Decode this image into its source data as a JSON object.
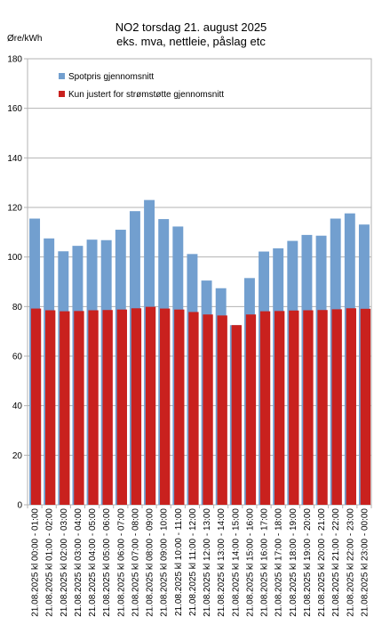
{
  "chart_data": {
    "type": "bar",
    "title": "NO2 torsdag 21. august 2025",
    "subtitle": "eks. mva, nettleie, påslag etc",
    "ylabel": "Øre/kWh",
    "xlabel": "",
    "ylim": [
      0,
      180
    ],
    "yticks": [
      0,
      20,
      40,
      60,
      80,
      100,
      120,
      140,
      160,
      180
    ],
    "grid": true,
    "legend": "top-left",
    "categories": [
      "21.08.2025 kl 00:00 - 01:00",
      "21.08.2025 kl 01:00 - 02:00",
      "21.08.2025 kl 02:00 - 03:00",
      "21.08.2025 kl 03:00 - 04:00",
      "21.08.2025 kl 04:00 - 05:00",
      "21.08.2025 kl 05:00 - 06:00",
      "21.08.2025 kl 06:00 - 07:00",
      "21.08.2025 kl 07:00 - 08:00",
      "21.08.2025 kl 08:00 - 09:00",
      "21.08.2025 kl 09:00 - 10:00",
      "21.08.2025 kl 10:00 - 11:00",
      "21.08.2025 kl 11:00 - 12:00",
      "21.08.2025 kl 12:00 - 13:00",
      "21.08.2025 kl 13:00 - 14:00",
      "21.08.2025 kl 14:00 - 15:00",
      "21.08.2025 kl 15:00 - 16:00",
      "21.08.2025 kl 16:00 - 17:00",
      "21.08.2025 kl 17:00 - 18:00",
      "21.08.2025 kl 18:00 - 19:00",
      "21.08.2025 kl 19:00 - 20:00",
      "21.08.2025 kl 20:00 - 21:00",
      "21.08.2025 kl 21:00 - 22:00",
      "21.08.2025 kl 22:00 - 23:00",
      "21.08.2025 kl 23:00 - 00:00"
    ],
    "series": [
      {
        "name": "Spotpris gjennomsnitt",
        "color": "#729fcf",
        "values": [
          115.5,
          107.5,
          102.3,
          104.5,
          107.0,
          106.8,
          111.0,
          118.5,
          123.0,
          115.3,
          112.3,
          101.2,
          90.5,
          87.4,
          72.5,
          91.5,
          102.2,
          103.5,
          106.5,
          108.9,
          108.6,
          115.5,
          117.6,
          113.1
        ]
      },
      {
        "name": "Kun justert for strømstøtte gjennomsnitt",
        "color": "#c9211e",
        "values": [
          79.2,
          78.5,
          78.1,
          78.2,
          78.5,
          78.6,
          78.8,
          79.3,
          79.9,
          79.2,
          78.8,
          77.8,
          76.8,
          76.4,
          72.5,
          76.8,
          78.1,
          78.2,
          78.4,
          78.5,
          78.6,
          78.9,
          79.3,
          79.1
        ]
      }
    ]
  }
}
